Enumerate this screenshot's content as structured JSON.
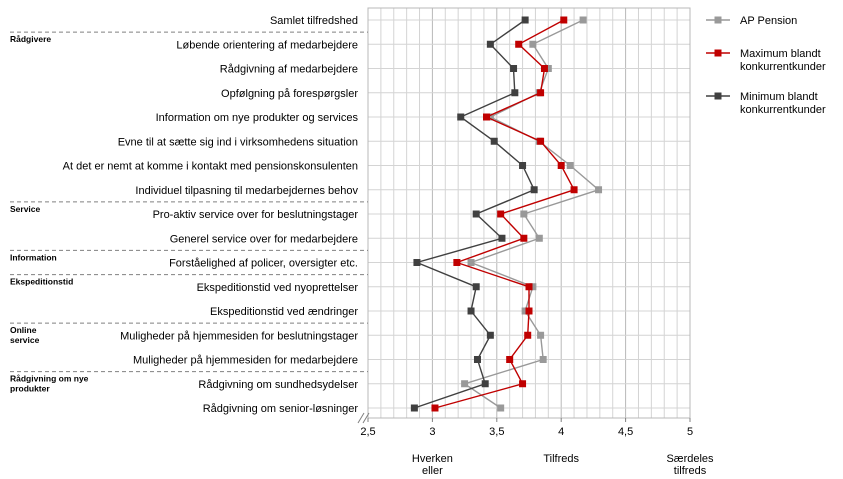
{
  "chart_data": {
    "type": "line",
    "orientation": "horizontal",
    "categories": [
      "Samlet tilfredshed",
      "Løbende orientering af medarbejdere",
      "Rådgivning af medarbejdere",
      "Opfølgning på forespørgsler",
      "Information om nye produkter og services",
      "Evne til at sætte sig ind i virksomhedens situation",
      "At det er nemt at komme i kontakt med pensionskonsulenten",
      "Individuel tilpasning til medarbejdernes behov",
      "Pro-aktiv service over for beslutningstager",
      "Generel service over for medarbejdere",
      "Forståelighed af policer, oversigter etc.",
      "Ekspeditionstid ved nyoprettelser",
      "Ekspeditionstid ved ændringer",
      "Muligheder på hjemmesiden for beslutningstager",
      "Muligheder på hjemmesiden for medarbejdere",
      "Rådgivning om sundhedsydelser",
      "Rådgivning om senior-løsninger"
    ],
    "groups": [
      {
        "label": "Rådgivere",
        "start": 1,
        "end": 7
      },
      {
        "label": "Service",
        "start": 8,
        "end": 9
      },
      {
        "label": "Information",
        "start": 10,
        "end": 10
      },
      {
        "label": "Ekspeditionstid",
        "start": 11,
        "end": 12
      },
      {
        "label": "Online service",
        "start": 13,
        "end": 14
      },
      {
        "label": "Rådgivning om nye produkter",
        "start": 15,
        "end": 16
      }
    ],
    "series": [
      {
        "name": "AP Pension",
        "color": "#999999",
        "values": [
          4.17,
          3.78,
          3.9,
          3.83,
          3.45,
          3.83,
          4.07,
          4.29,
          3.71,
          3.83,
          3.3,
          3.78,
          3.72,
          3.84,
          3.86,
          3.25,
          3.53
        ]
      },
      {
        "name": "Maximum blandt konkurrentkunder",
        "color": "#c00000",
        "values": [
          4.02,
          3.67,
          3.87,
          3.84,
          3.42,
          3.84,
          4.0,
          4.1,
          3.53,
          3.71,
          3.19,
          3.75,
          3.75,
          3.74,
          3.6,
          3.7,
          3.02
        ]
      },
      {
        "name": "Minimum blandt konkurrentkunder",
        "color": "#404040",
        "values": [
          3.72,
          3.45,
          3.63,
          3.64,
          3.22,
          3.48,
          3.7,
          3.79,
          3.34,
          3.54,
          2.88,
          3.34,
          3.3,
          3.45,
          3.35,
          3.41,
          2.86
        ]
      }
    ],
    "x_ticks": [
      "2,5",
      "3",
      "3,5",
      "4",
      "4,5",
      "5"
    ],
    "x_tick_values": [
      2.5,
      3,
      3.5,
      4,
      4.5,
      5
    ],
    "xlim": [
      2.5,
      5
    ],
    "x_anchor_labels": [
      {
        "value": 3,
        "lines": [
          "Hverken",
          "eller"
        ]
      },
      {
        "value": 4,
        "lines": [
          "Tilfreds"
        ]
      },
      {
        "value": 5,
        "lines": [
          "Særdeles",
          "tilfreds"
        ]
      }
    ],
    "grid": true,
    "legend_position": "right",
    "legend_lines": [
      [
        "AP Pension"
      ],
      [
        "Maximum blandt",
        "konkurrentkunder"
      ],
      [
        "Minimum blandt",
        "konkurrentkunder"
      ]
    ]
  }
}
